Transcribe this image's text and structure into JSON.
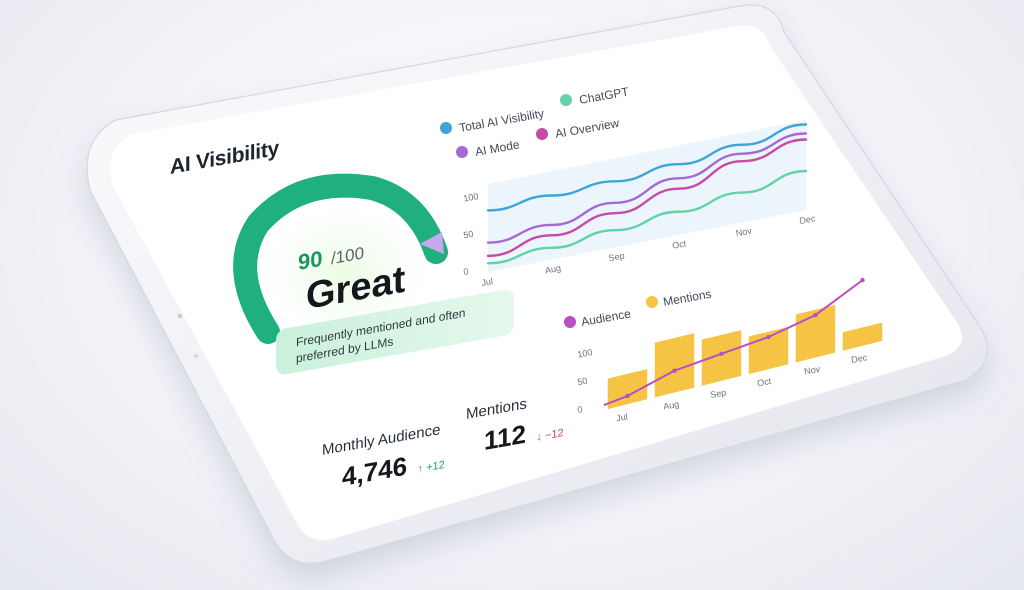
{
  "dashboard": {
    "title": "AI Visibility",
    "score": {
      "value": "90",
      "max": "/100",
      "fraction": 0.9,
      "rating": "Great",
      "description": "Frequently mentioned and often preferred by LLMs"
    },
    "stats": {
      "audience": {
        "label": "Monthly Audience",
        "value": "4,746",
        "delta": "↑ +12"
      },
      "mentions": {
        "label": "Mentions",
        "value": "112",
        "delta": "↓ −12"
      }
    }
  },
  "colors": {
    "accent_green": "#1fb07e",
    "total": "#3ea5d8",
    "chatgpt": "#63d3a6",
    "ai_mode": "#a36ad6",
    "ai_overview": "#c74aa8",
    "audience": "#b84fc2",
    "mentions": "#f6c445",
    "up": "#1e9f72",
    "down": "#c9485b"
  },
  "chart_data": [
    {
      "type": "line",
      "categories": [
        "Jul",
        "Aug",
        "Sep",
        "Oct",
        "Nov",
        "Dec"
      ],
      "y_ticks": [
        "0",
        "50",
        "100"
      ],
      "ylim": [
        0,
        120
      ],
      "legend_position": "top",
      "series": [
        {
          "name": "Total AI Visibility",
          "values": [
            84,
            87,
            89,
            95,
            104,
            114
          ]
        },
        {
          "name": "ChatGPT",
          "values": [
            12,
            16,
            23,
            31,
            40,
            52
          ]
        },
        {
          "name": "AI Mode",
          "values": [
            40,
            47,
            60,
            76,
            92,
            102
          ]
        },
        {
          "name": "AI Overview",
          "values": [
            22,
            33,
            46,
            62,
            82,
            94
          ]
        }
      ]
    },
    {
      "type": "bar",
      "categories": [
        "Jul",
        "Aug",
        "Sep",
        "Oct",
        "Nov",
        "Dec"
      ],
      "y_ticks": [
        "0",
        "50",
        "100"
      ],
      "ylim": [
        0,
        130
      ],
      "legend_position": "top",
      "series": [
        {
          "name": "Audience",
          "kind": "line",
          "values": [
            15,
            40,
            50,
            60,
            80,
            125
          ]
        },
        {
          "name": "Mentions",
          "kind": "bar",
          "values": [
            55,
            100,
            85,
            70,
            90,
            35
          ]
        }
      ]
    }
  ]
}
